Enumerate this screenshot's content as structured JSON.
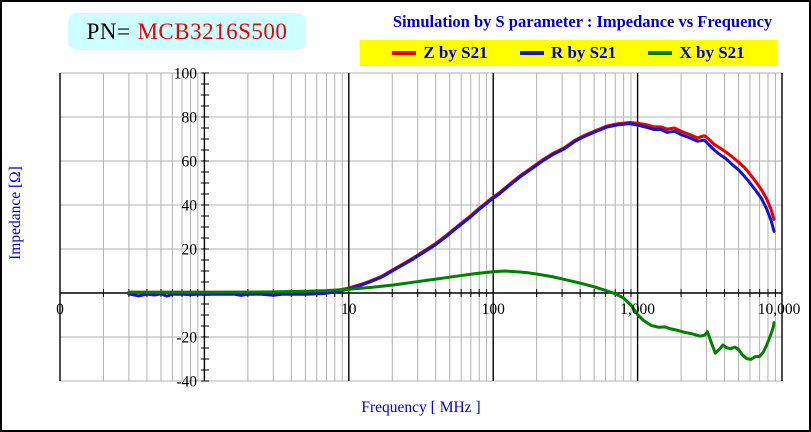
{
  "header": {
    "pn_label": "PN=",
    "pn_value": "MCB3216S500",
    "title": "Simulation by S parameter : Impedance vs Frequency"
  },
  "axes": {
    "x_label": "Frequency [ MHz ]",
    "y_label": "Impedance [Ω]",
    "x_ticks": [
      {
        "label": "0",
        "f": 0.1
      },
      {
        "label": "10",
        "f": 10
      },
      {
        "label": "100",
        "f": 100
      },
      {
        "label": "1,000",
        "f": 1000
      },
      {
        "label": "10,000",
        "f": 10000
      }
    ],
    "y_ticks": [
      100,
      80,
      60,
      40,
      20,
      -20,
      -40
    ]
  },
  "colors": {
    "title_blue": "#0000cc",
    "pn_red": "#ee0000",
    "pn_box_bg": "#ccffff",
    "legend_bg": "#ffff00",
    "grid_gray": "#b2b2b2",
    "axis_black": "#000000"
  },
  "chart_data": {
    "type": "line",
    "title": "Simulation by S parameter : Impedance vs Frequency",
    "xlabel": "Frequency [ MHz ]",
    "ylabel": "Impedance [Ω]",
    "x_scale": "log",
    "x_range_mhz": [
      0.1,
      10000
    ],
    "ylim": [
      -40,
      100
    ],
    "grid": true,
    "legend_position": "top",
    "series": [
      {
        "name": "Z by S21",
        "color": "#e80000",
        "points": [
          [
            0.3,
            0.3
          ],
          [
            0.5,
            0.3
          ],
          [
            1,
            0.3
          ],
          [
            2,
            0.3
          ],
          [
            3,
            0.3
          ],
          [
            5,
            0.4
          ],
          [
            7,
            0.7
          ],
          [
            8,
            1.0
          ],
          [
            9,
            1.6
          ],
          [
            10,
            2.3
          ],
          [
            12,
            3.8
          ],
          [
            14,
            5.4
          ],
          [
            17,
            7.7
          ],
          [
            20,
            10.4
          ],
          [
            24,
            13.4
          ],
          [
            28,
            16.0
          ],
          [
            33,
            19.0
          ],
          [
            40,
            22.5
          ],
          [
            48,
            26.5
          ],
          [
            57,
            30.5
          ],
          [
            68,
            34.5
          ],
          [
            80,
            38.5
          ],
          [
            95,
            42.5
          ],
          [
            110,
            45.5
          ],
          [
            130,
            49.5
          ],
          [
            155,
            53.5
          ],
          [
            185,
            57.0
          ],
          [
            220,
            60.5
          ],
          [
            260,
            63.5
          ],
          [
            310,
            66.0
          ],
          [
            370,
            69.5
          ],
          [
            440,
            72.0
          ],
          [
            520,
            74.0
          ],
          [
            620,
            76.0
          ],
          [
            740,
            77.0
          ],
          [
            880,
            77.5
          ],
          [
            1000,
            77.2
          ],
          [
            1150,
            76.5
          ],
          [
            1300,
            75.5
          ],
          [
            1450,
            75.5
          ],
          [
            1600,
            74.5
          ],
          [
            1800,
            75.0
          ],
          [
            2000,
            73.5
          ],
          [
            2300,
            72.0
          ],
          [
            2600,
            70.5
          ],
          [
            2900,
            71.5
          ],
          [
            3100,
            70.0
          ],
          [
            3400,
            67.5
          ],
          [
            3700,
            66.0
          ],
          [
            4100,
            64.0
          ],
          [
            4500,
            62.0
          ],
          [
            5000,
            59.5
          ],
          [
            5500,
            57.0
          ],
          [
            6000,
            54.0
          ],
          [
            6600,
            50.5
          ],
          [
            7200,
            47.0
          ],
          [
            7800,
            43.0
          ],
          [
            8400,
            38.0
          ],
          [
            8800,
            33.5
          ]
        ]
      },
      {
        "name": "R by S21",
        "color": "#1414cc",
        "points": [
          [
            0.3,
            -0.4
          ],
          [
            0.35,
            -1.3
          ],
          [
            0.4,
            -0.5
          ],
          [
            0.45,
            -0.9
          ],
          [
            0.5,
            -0.4
          ],
          [
            0.55,
            -1.4
          ],
          [
            0.6,
            -0.6
          ],
          [
            0.7,
            -0.5
          ],
          [
            0.8,
            -0.8
          ],
          [
            0.9,
            -0.5
          ],
          [
            1.0,
            -0.7
          ],
          [
            1.2,
            -0.5
          ],
          [
            1.4,
            -0.6
          ],
          [
            1.6,
            -0.5
          ],
          [
            1.8,
            -1.1
          ],
          [
            2.0,
            -0.5
          ],
          [
            2.5,
            -0.6
          ],
          [
            3.0,
            -1.0
          ],
          [
            3.5,
            -0.5
          ],
          [
            4.0,
            -0.6
          ],
          [
            4.5,
            -0.5
          ],
          [
            5.0,
            -0.6
          ],
          [
            6.0,
            -0.4
          ],
          [
            7.0,
            -0.1
          ],
          [
            8.0,
            0.4
          ],
          [
            9.0,
            1.1
          ],
          [
            10,
            1.8
          ],
          [
            12,
            3.4
          ],
          [
            14,
            5.0
          ],
          [
            17,
            7.3
          ],
          [
            20,
            10.0
          ],
          [
            24,
            13.0
          ],
          [
            28,
            15.5
          ],
          [
            33,
            18.5
          ],
          [
            40,
            22.0
          ],
          [
            48,
            26.0
          ],
          [
            57,
            30.0
          ],
          [
            68,
            34.0
          ],
          [
            80,
            38.0
          ],
          [
            95,
            42.0
          ],
          [
            110,
            45.0
          ],
          [
            130,
            49.0
          ],
          [
            155,
            53.0
          ],
          [
            185,
            56.5
          ],
          [
            220,
            60.0
          ],
          [
            260,
            63.0
          ],
          [
            310,
            65.5
          ],
          [
            370,
            69.0
          ],
          [
            440,
            71.5
          ],
          [
            520,
            73.5
          ],
          [
            620,
            75.5
          ],
          [
            740,
            76.5
          ],
          [
            880,
            77.0
          ],
          [
            1000,
            76.3
          ],
          [
            1150,
            75.3
          ],
          [
            1300,
            74.3
          ],
          [
            1450,
            74.3
          ],
          [
            1600,
            73.0
          ],
          [
            1800,
            73.5
          ],
          [
            2000,
            72.0
          ],
          [
            2300,
            70.5
          ],
          [
            2600,
            69.0
          ],
          [
            2900,
            69.5
          ],
          [
            3100,
            67.5
          ],
          [
            3400,
            65.0
          ],
          [
            3700,
            63.0
          ],
          [
            4100,
            61.0
          ],
          [
            4500,
            58.5
          ],
          [
            5000,
            56.0
          ],
          [
            5500,
            53.0
          ],
          [
            6000,
            50.0
          ],
          [
            6600,
            46.5
          ],
          [
            7200,
            43.0
          ],
          [
            7800,
            38.5
          ],
          [
            8400,
            33.0
          ],
          [
            8800,
            28.0
          ]
        ]
      },
      {
        "name": "X by S21",
        "color": "#008000",
        "points": [
          [
            0.3,
            0.3
          ],
          [
            0.5,
            0.3
          ],
          [
            1,
            0.3
          ],
          [
            2,
            0.4
          ],
          [
            3,
            0.5
          ],
          [
            5,
            0.8
          ],
          [
            7,
            1.1
          ],
          [
            10,
            1.7
          ],
          [
            14,
            2.5
          ],
          [
            20,
            3.6
          ],
          [
            28,
            4.9
          ],
          [
            40,
            6.3
          ],
          [
            55,
            7.6
          ],
          [
            75,
            8.8
          ],
          [
            100,
            9.7
          ],
          [
            120,
            10.0
          ],
          [
            145,
            9.7
          ],
          [
            175,
            9.2
          ],
          [
            210,
            8.4
          ],
          [
            260,
            7.3
          ],
          [
            320,
            6.0
          ],
          [
            400,
            4.5
          ],
          [
            500,
            2.8
          ],
          [
            600,
            1.2
          ],
          [
            700,
            -0.3
          ],
          [
            800,
            -2.3
          ],
          [
            900,
            -5.5
          ],
          [
            1000,
            -9.8
          ],
          [
            1100,
            -12.5
          ],
          [
            1250,
            -14.8
          ],
          [
            1400,
            -15.6
          ],
          [
            1550,
            -15.4
          ],
          [
            1700,
            -16.3
          ],
          [
            1900,
            -17.0
          ],
          [
            2100,
            -17.8
          ],
          [
            2400,
            -18.6
          ],
          [
            2700,
            -19.6
          ],
          [
            2900,
            -19.2
          ],
          [
            3050,
            -17.6
          ],
          [
            3200,
            -21.5
          ],
          [
            3450,
            -27.3
          ],
          [
            3700,
            -25.5
          ],
          [
            3900,
            -23.6
          ],
          [
            4100,
            -24.8
          ],
          [
            4400,
            -25.3
          ],
          [
            4700,
            -24.6
          ],
          [
            5000,
            -25.6
          ],
          [
            5300,
            -28.0
          ],
          [
            5700,
            -29.8
          ],
          [
            6100,
            -30.2
          ],
          [
            6500,
            -29.0
          ],
          [
            7000,
            -28.8
          ],
          [
            7400,
            -27.0
          ],
          [
            7800,
            -24.0
          ],
          [
            8300,
            -19.5
          ],
          [
            8700,
            -15.5
          ],
          [
            8800,
            -13.5
          ]
        ]
      }
    ]
  }
}
